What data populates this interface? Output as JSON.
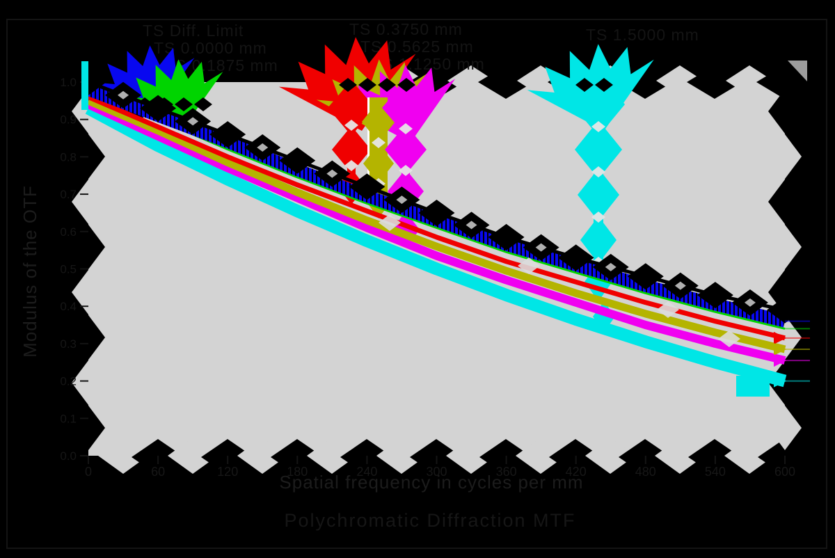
{
  "figure": {
    "background": "#000000",
    "plot_area_color": "#d3d3d3",
    "caption": "Polychromatic Diffraction MTF"
  },
  "legend": {
    "groups": [
      {
        "lines": [
          {
            "label": "TS Diff. Limit",
            "color": "#000000"
          },
          {
            "label": "TS 0.0000 mm",
            "color": "#0808f0"
          },
          {
            "label": "TS 0.1875 mm",
            "color": "#00d400"
          }
        ]
      },
      {
        "lines": [
          {
            "label": "TS 0.3750 mm",
            "color": "#f00000"
          },
          {
            "label": "TS 0.5625 mm",
            "color": "#b4b400"
          },
          {
            "label": "TS 1.1250 mm",
            "color": "#f000f0"
          }
        ]
      },
      {
        "lines": [
          {
            "label": "TS 1.5000 mm",
            "color": "#00e6e6"
          }
        ]
      }
    ]
  },
  "chart_data": {
    "type": "line",
    "title": "Polychromatic Diffraction MTF",
    "xlabel": "Spatial frequency in cycles per mm",
    "ylabel": "Modulus of the OTF",
    "xlim": [
      0,
      600
    ],
    "ylim": [
      0,
      1
    ],
    "grid": false,
    "legend_position": "top",
    "xticks": [
      0,
      60,
      120,
      180,
      240,
      300,
      360,
      420,
      480,
      540,
      600
    ],
    "ytick_labels": [
      "0.0",
      "0.1",
      "0.2",
      "0.3",
      "0.4",
      "0.5",
      "0.6",
      "0.7",
      "0.8",
      "0.9",
      "1.0"
    ],
    "x": [
      0,
      60,
      120,
      180,
      240,
      300,
      360,
      420,
      480,
      540,
      600
    ],
    "series": [
      {
        "name": "TS Diff. Limit",
        "color": "#000000",
        "values": [
          1.0,
          0.93,
          0.86,
          0.79,
          0.72,
          0.65,
          0.585,
          0.53,
          0.48,
          0.43,
          0.39
        ]
      },
      {
        "name": "TS 0.0000 mm",
        "color": "#0808f0",
        "values": [
          0.98,
          0.91,
          0.84,
          0.765,
          0.695,
          0.63,
          0.565,
          0.51,
          0.455,
          0.405,
          0.36
        ]
      },
      {
        "name": "TS 0.1875 mm",
        "color": "#00d400",
        "values": [
          0.97,
          0.9,
          0.82,
          0.745,
          0.675,
          0.61,
          0.545,
          0.49,
          0.435,
          0.385,
          0.34
        ]
      },
      {
        "name": "TS 0.3750 mm",
        "color": "#f00000",
        "values": [
          0.96,
          0.88,
          0.8,
          0.725,
          0.655,
          0.585,
          0.52,
          0.465,
          0.41,
          0.36,
          0.315
        ]
      },
      {
        "name": "TS 0.5625 mm",
        "color": "#b4b400",
        "values": [
          0.95,
          0.87,
          0.785,
          0.705,
          0.63,
          0.56,
          0.495,
          0.435,
          0.38,
          0.33,
          0.285
        ]
      },
      {
        "name": "TS 1.1250 mm",
        "color": "#f000f0",
        "values": [
          0.94,
          0.855,
          0.77,
          0.69,
          0.61,
          0.535,
          0.47,
          0.41,
          0.35,
          0.3,
          0.255
        ]
      },
      {
        "name": "TS 1.5000 mm",
        "color": "#00e6e6",
        "values": [
          0.93,
          0.83,
          0.74,
          0.655,
          0.575,
          0.5,
          0.43,
          0.365,
          0.305,
          0.25,
          0.2
        ]
      }
    ]
  }
}
